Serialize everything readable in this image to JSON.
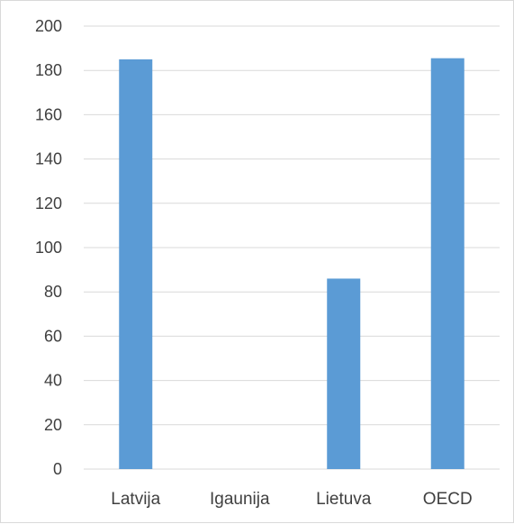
{
  "chart_data": {
    "type": "bar",
    "title": "",
    "xlabel": "",
    "ylabel": "",
    "categories": [
      "Latvija",
      "Igaunija",
      "Lietuva",
      "OECD"
    ],
    "values": [
      185,
      0,
      86,
      185.5
    ],
    "ylim": [
      0,
      200
    ],
    "yticks": [
      "0",
      "20",
      "40",
      "60",
      "80",
      "100",
      "120",
      "140",
      "160",
      "180",
      "200"
    ],
    "grid": true,
    "legend": "none",
    "bar_color": "#5b9bd5",
    "grid_color": "#d9d9d9"
  }
}
